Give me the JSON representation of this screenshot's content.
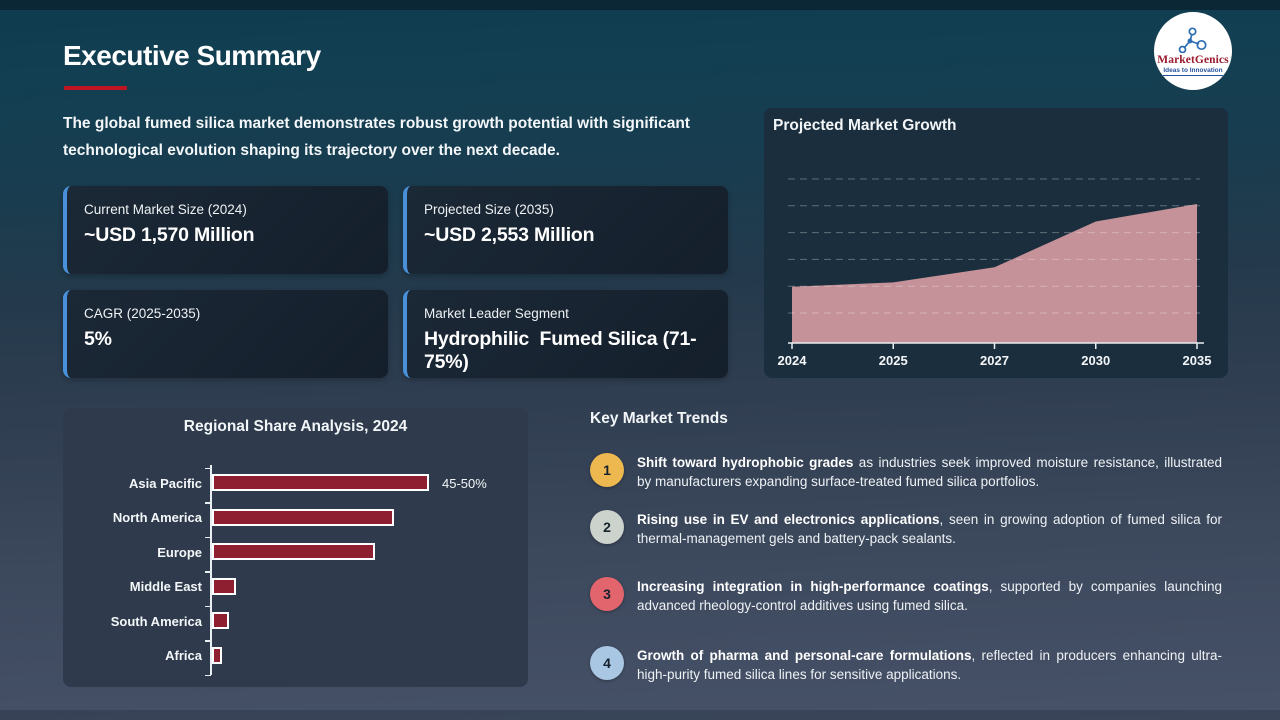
{
  "slide": {
    "title": "Executive Summary",
    "intro": "The global fumed silica market demonstrates robust growth potential with significant technological evolution shaping its trajectory over the next decade."
  },
  "logo": {
    "name": "MarketGenics",
    "tagline": "Ideas to Innovation"
  },
  "stat_cards": [
    {
      "label": "Current Market Size (2024)",
      "value": "~USD 1,570 Million"
    },
    {
      "label": "Projected Size (2035)",
      "value": "~USD 2,553 Million"
    },
    {
      "label": "CAGR (2025-2035)",
      "value": "5%"
    },
    {
      "label": "Market Leader Segment",
      "value": "Hydrophilic  Fumed Silica (71-75%)"
    }
  ],
  "chart_data": [
    {
      "type": "area",
      "title": "Projected Market Growth",
      "x": [
        "2024",
        "2025",
        "2027",
        "2030",
        "2035"
      ],
      "values": [
        1570,
        1620,
        1800,
        2345,
        2553
      ],
      "unit": "USD Million",
      "ylim": [
        900,
        2850
      ],
      "grid": "dashed horizontal, no y tick labels",
      "legend": "none",
      "area_color": "#c49298"
    },
    {
      "type": "bar",
      "orientation": "horizontal",
      "title": "Regional Share Analysis, 2024",
      "categories": [
        "Asia Pacific",
        "North America",
        "Europe",
        "Middle East",
        "South America",
        "Africa"
      ],
      "values": [
        47.5,
        40,
        36,
        6,
        4.5,
        3
      ],
      "data_labels": [
        "45-50%",
        "",
        "",
        "",
        "",
        ""
      ],
      "xlim": [
        0,
        51
      ],
      "unit": "% share",
      "bar_color": "#8e1f30"
    }
  ],
  "trends": {
    "heading": "Key Market Trends",
    "items": [
      {
        "num": "1",
        "color": "#edb84f",
        "bold": "Shift toward hydrophobic grades",
        "rest": " as industries seek improved moisture resistance, illustrated by manufacturers expanding surface-treated fumed silica portfolios."
      },
      {
        "num": "2",
        "color": "#ccd3cc",
        "bold": "Rising use in EV and electronics applications",
        "rest": ", seen in growing adoption of fumed silica for thermal-management gels and battery-pack sealants."
      },
      {
        "num": "3",
        "color": "#e2646c",
        "bold": "Increasing integration in high-performance coatings",
        "rest": ", supported by companies launching advanced rheology-control additives using fumed silica."
      },
      {
        "num": "4",
        "color": "#a9c6e2",
        "bold": "Growth of pharma and personal-care formulations",
        "rest": ", reflected in producers enhancing ultra-high-purity fumed silica lines for sensitive applications."
      }
    ]
  },
  "colors": {
    "accent_red": "#c11421",
    "accent_blue": "#4a90d9",
    "axis_white": "#e9eef3"
  }
}
